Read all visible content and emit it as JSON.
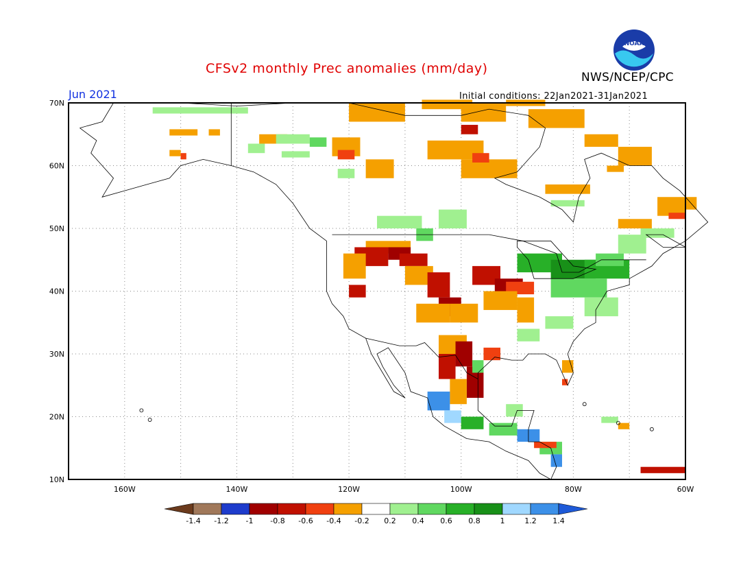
{
  "header": {
    "title": "CFSv2 monthly Prec anomalies (mm/day)",
    "month": "Jun 2021",
    "agency": "NWS/NCEP/CPC",
    "initial_conditions": "Initial conditions: 22Jan2021-31Jan2021",
    "logo_text": "NOAA"
  },
  "map": {
    "region": "North America",
    "lon_range": [
      -170,
      -60
    ],
    "lat_range": [
      10,
      70
    ],
    "lat_ticks": [
      "10N",
      "20N",
      "30N",
      "40N",
      "50N",
      "60N",
      "70N"
    ],
    "lon_ticks": [
      "160W",
      "140W",
      "120W",
      "100W",
      "80W",
      "60W"
    ],
    "gridlines": true
  },
  "colorbar": {
    "labels": [
      "-1.4",
      "-1.2",
      "-1",
      "-0.8",
      "-0.6",
      "-0.4",
      "-0.2",
      "0.2",
      "0.4",
      "0.6",
      "0.8",
      "1",
      "1.2",
      "1.4"
    ],
    "colors": [
      "#6b3a1c",
      "#a0785a",
      "#1e3ccc",
      "#a00000",
      "#c01000",
      "#f04010",
      "#f5a000",
      "#ffffff",
      "#a0f090",
      "#60d860",
      "#28b028",
      "#189018",
      "#a0d8ff",
      "#3c90e8",
      "#1e5ad8"
    ]
  },
  "palette": {
    "wet_light": "#a0f090",
    "wet_mid": "#60d860",
    "wet_dark": "#28b028",
    "wet_darker": "#189018",
    "wet_lightblue": "#a0d8ff",
    "wet_blue": "#3c90e8",
    "dry_orange": "#f5a000",
    "dry_red": "#f04010",
    "dry_dark": "#c01000",
    "dry_darkest": "#a00000"
  }
}
